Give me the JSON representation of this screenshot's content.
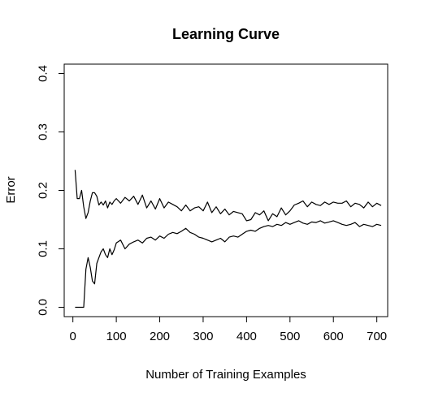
{
  "chart_data": {
    "type": "line",
    "title": "Learning Curve",
    "xlabel": "Number of Training Examples",
    "ylabel": "Error",
    "xlim": [
      -20,
      725
    ],
    "ylim": [
      -0.016,
      0.416
    ],
    "xticks": [
      0,
      100,
      200,
      300,
      400,
      500,
      600,
      700
    ],
    "yticks": [
      0.0,
      0.1,
      0.2,
      0.3,
      0.4
    ],
    "ytick_labels": [
      "0.0",
      "0.1",
      "0.2",
      "0.3",
      "0.4"
    ],
    "grid": false,
    "series": [
      {
        "x": [
          5,
          10,
          15,
          20,
          25,
          30,
          35,
          40,
          45,
          50,
          55,
          60,
          65,
          70,
          75,
          80,
          85,
          90,
          95,
          100,
          110,
          120,
          130,
          140,
          150,
          160,
          170,
          180,
          190,
          200,
          210,
          220,
          230,
          240,
          250,
          260,
          270,
          280,
          290,
          300,
          310,
          320,
          330,
          340,
          350,
          360,
          370,
          380,
          390,
          400,
          410,
          420,
          430,
          440,
          450,
          460,
          470,
          480,
          490,
          500,
          510,
          520,
          530,
          540,
          550,
          560,
          570,
          580,
          590,
          600,
          610,
          620,
          630,
          640,
          650,
          660,
          670,
          680,
          690,
          700,
          710
        ],
        "values": [
          0.235,
          0.186,
          0.186,
          0.2,
          0.172,
          0.152,
          0.162,
          0.182,
          0.196,
          0.196,
          0.19,
          0.175,
          0.18,
          0.175,
          0.182,
          0.17,
          0.18,
          0.176,
          0.182,
          0.186,
          0.178,
          0.188,
          0.182,
          0.19,
          0.176,
          0.192,
          0.17,
          0.182,
          0.168,
          0.186,
          0.17,
          0.18,
          0.176,
          0.172,
          0.165,
          0.175,
          0.165,
          0.17,
          0.172,
          0.165,
          0.18,
          0.162,
          0.172,
          0.16,
          0.168,
          0.158,
          0.164,
          0.162,
          0.16,
          0.148,
          0.15,
          0.162,
          0.158,
          0.165,
          0.148,
          0.16,
          0.155,
          0.17,
          0.158,
          0.165,
          0.175,
          0.178,
          0.182,
          0.172,
          0.18,
          0.176,
          0.174,
          0.18,
          0.176,
          0.18,
          0.178,
          0.178,
          0.182,
          0.172,
          0.178,
          0.176,
          0.17,
          0.18,
          0.172,
          0.178,
          0.174
        ]
      },
      {
        "x": [
          5,
          10,
          15,
          20,
          25,
          30,
          35,
          40,
          45,
          50,
          55,
          60,
          65,
          70,
          75,
          80,
          85,
          90,
          95,
          100,
          110,
          120,
          130,
          140,
          150,
          160,
          170,
          180,
          190,
          200,
          210,
          220,
          230,
          240,
          250,
          260,
          270,
          280,
          290,
          300,
          310,
          320,
          330,
          340,
          350,
          360,
          370,
          380,
          390,
          400,
          410,
          420,
          430,
          440,
          450,
          460,
          470,
          480,
          490,
          500,
          510,
          520,
          530,
          540,
          550,
          560,
          570,
          580,
          590,
          600,
          610,
          620,
          630,
          640,
          650,
          660,
          670,
          680,
          690,
          700,
          710
        ],
        "values": [
          0.0,
          0.0,
          0.0,
          0.0,
          0.0,
          0.065,
          0.085,
          0.068,
          0.045,
          0.04,
          0.075,
          0.085,
          0.095,
          0.1,
          0.09,
          0.085,
          0.1,
          0.09,
          0.098,
          0.11,
          0.115,
          0.1,
          0.108,
          0.112,
          0.115,
          0.11,
          0.118,
          0.12,
          0.115,
          0.122,
          0.118,
          0.125,
          0.128,
          0.126,
          0.13,
          0.135,
          0.128,
          0.125,
          0.12,
          0.118,
          0.115,
          0.112,
          0.115,
          0.118,
          0.112,
          0.12,
          0.122,
          0.12,
          0.125,
          0.13,
          0.132,
          0.13,
          0.135,
          0.138,
          0.14,
          0.138,
          0.142,
          0.14,
          0.145,
          0.142,
          0.145,
          0.148,
          0.144,
          0.142,
          0.146,
          0.145,
          0.148,
          0.144,
          0.146,
          0.148,
          0.145,
          0.142,
          0.14,
          0.142,
          0.145,
          0.138,
          0.142,
          0.14,
          0.138,
          0.142,
          0.14
        ]
      }
    ]
  }
}
